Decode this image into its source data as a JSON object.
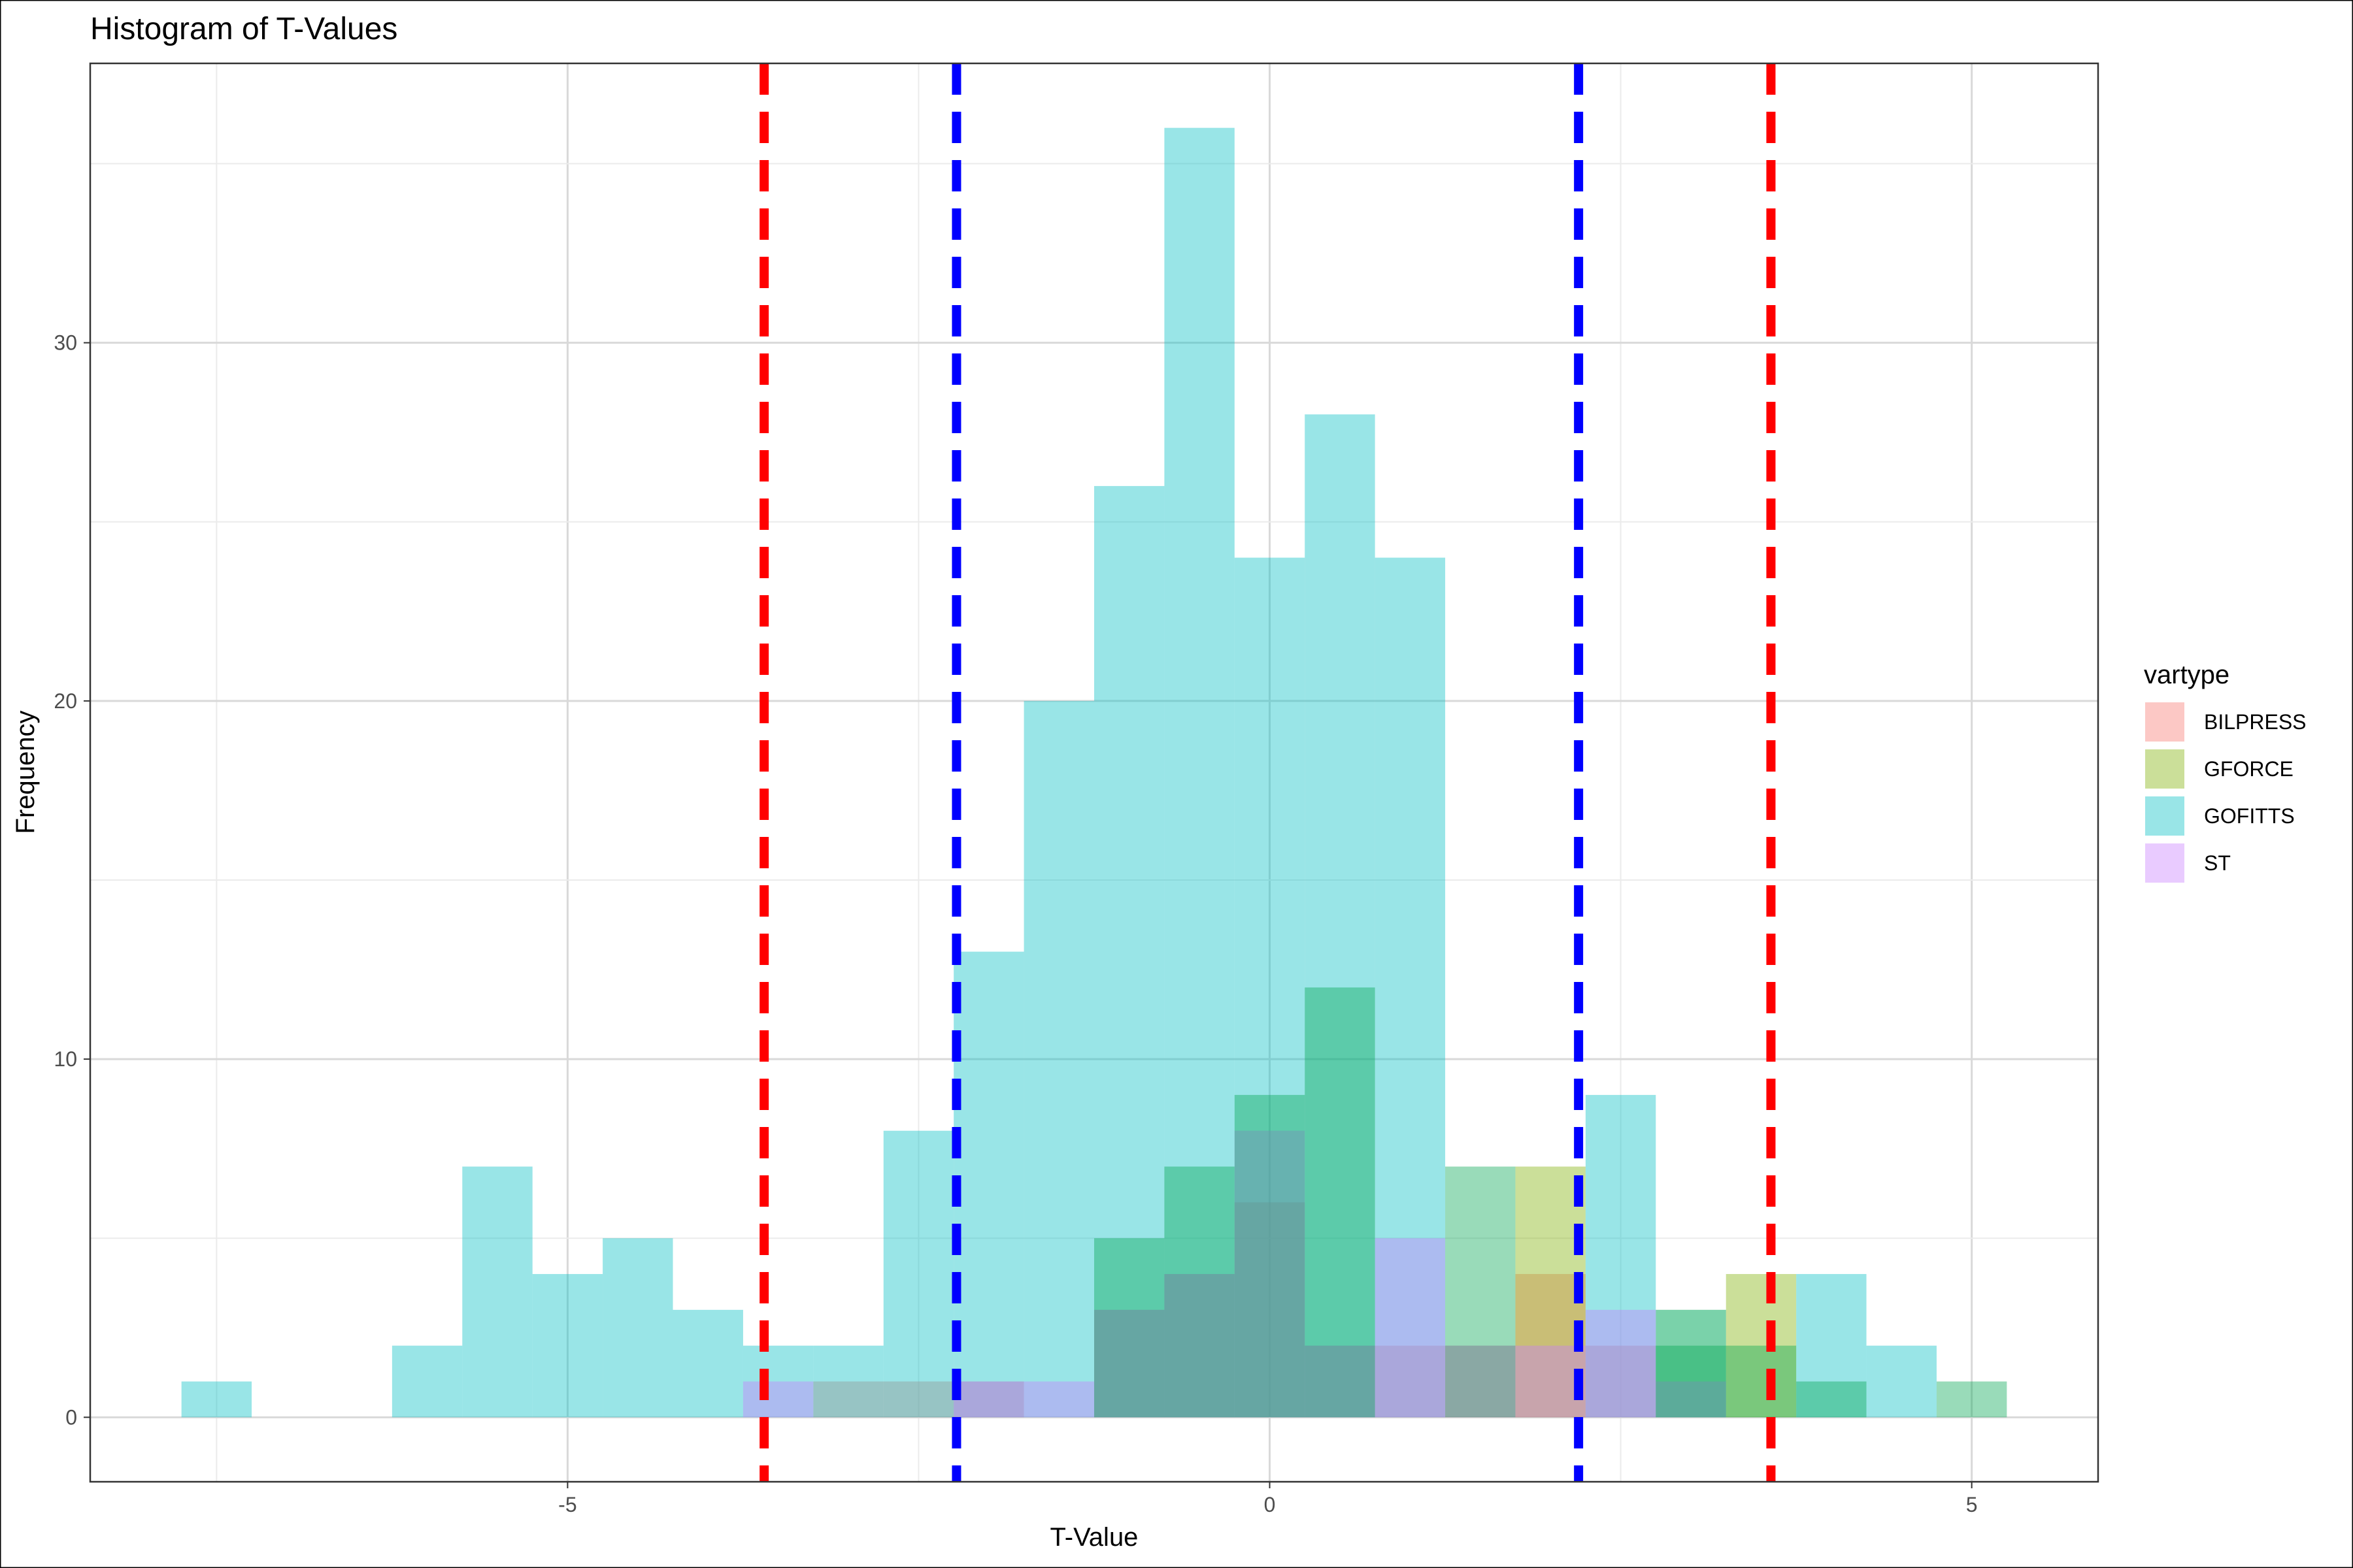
{
  "chart_data": {
    "type": "histogram",
    "title": "Histogram of T-Values",
    "xlabel": "T-Value",
    "ylabel": "Frequency",
    "xlim": [
      -8.4,
      5.9
    ],
    "ylim": [
      -1.8,
      37.8
    ],
    "x_ticks": [
      -5,
      0,
      5
    ],
    "x_tick_labels": [
      "-5",
      "0",
      "5"
    ],
    "y_ticks": [
      0,
      10,
      20,
      30
    ],
    "y_tick_labels": [
      "0",
      "10",
      "20",
      "30"
    ],
    "grid": true,
    "bin_width": 0.5,
    "legend": {
      "title": "vartype",
      "position": "right",
      "entries": [
        "BILPRESS",
        "GFORCE",
        "GOFITTS",
        "ST"
      ]
    },
    "series": [
      {
        "name": "BILPRESS",
        "color": "#F8766D",
        "bins": [
          {
            "x0": -3.25,
            "count": 1
          },
          {
            "x0": -2.75,
            "count": 1
          },
          {
            "x0": -2.25,
            "count": 1
          },
          {
            "x0": -1.25,
            "count": 3
          },
          {
            "x0": -0.75,
            "count": 4
          },
          {
            "x0": -0.25,
            "count": 6
          },
          {
            "x0": 0.25,
            "count": 2
          },
          {
            "x0": 0.75,
            "count": 2
          },
          {
            "x0": 1.25,
            "count": 2
          },
          {
            "x0": 1.75,
            "count": 4
          },
          {
            "x0": 2.25,
            "count": 2
          }
        ]
      },
      {
        "name": "GFORCE",
        "color": "#7CAE00",
        "bins": [
          {
            "x0": 1.75,
            "count": 7
          },
          {
            "x0": 2.75,
            "count": 3
          },
          {
            "x0": 3.25,
            "count": 4
          }
        ]
      },
      {
        "name": "GOFITTS",
        "color": "#00BFC4",
        "bins": [
          {
            "x0": -7.75,
            "count": 1
          },
          {
            "x0": -6.25,
            "count": 2
          },
          {
            "x0": -5.75,
            "count": 7
          },
          {
            "x0": -5.25,
            "count": 4
          },
          {
            "x0": -4.75,
            "count": 5
          },
          {
            "x0": -4.25,
            "count": 3
          },
          {
            "x0": -3.75,
            "count": 2
          },
          {
            "x0": -3.25,
            "count": 2
          },
          {
            "x0": -2.75,
            "count": 8
          },
          {
            "x0": -2.25,
            "count": 13
          },
          {
            "x0": -1.75,
            "count": 20
          },
          {
            "x0": -1.25,
            "count": 26
          },
          {
            "x0": -0.75,
            "count": 36
          },
          {
            "x0": -0.25,
            "count": 24
          },
          {
            "x0": 0.25,
            "count": 28
          },
          {
            "x0": 0.75,
            "count": 24
          },
          {
            "x0": 2.25,
            "count": 9
          },
          {
            "x0": 2.75,
            "count": 3
          },
          {
            "x0": 3.75,
            "count": 4
          },
          {
            "x0": 4.25,
            "count": 2
          }
        ]
      },
      {
        "name": "ST",
        "color": "#C77CFF",
        "bins": [
          {
            "x0": -3.75,
            "count": 1
          },
          {
            "x0": -2.25,
            "count": 1
          },
          {
            "x0": -1.75,
            "count": 1
          },
          {
            "x0": -1.25,
            "count": 3
          },
          {
            "x0": -0.75,
            "count": 4
          },
          {
            "x0": -0.25,
            "count": 8
          },
          {
            "x0": 0.25,
            "count": 2
          },
          {
            "x0": 0.75,
            "count": 5
          },
          {
            "x0": 1.25,
            "count": 2
          },
          {
            "x0": 1.75,
            "count": 2
          },
          {
            "x0": 2.25,
            "count": 3
          },
          {
            "x0": 2.75,
            "count": 1
          }
        ]
      },
      {
        "name": "",
        "color": "#00A651",
        "bins": [
          {
            "x0": -1.25,
            "count": 5
          },
          {
            "x0": -0.75,
            "count": 7
          },
          {
            "x0": -0.25,
            "count": 9
          },
          {
            "x0": 0.25,
            "count": 12
          },
          {
            "x0": 1.25,
            "count": 7
          },
          {
            "x0": 2.75,
            "count": 2
          },
          {
            "x0": 3.25,
            "count": 2
          },
          {
            "x0": 3.75,
            "count": 1
          },
          {
            "x0": 4.75,
            "count": 1
          }
        ]
      }
    ],
    "reference_lines": [
      {
        "x": -3.6,
        "color": "#FF0000",
        "style": "dashed"
      },
      {
        "x": -2.23,
        "color": "#0000FF",
        "style": "dashed"
      },
      {
        "x": 2.2,
        "color": "#0000FF",
        "style": "dashed"
      },
      {
        "x": 3.57,
        "color": "#FF0000",
        "style": "dashed"
      }
    ],
    "colors": {
      "panel_border": "#333333",
      "grid_major": "#D9D9D9",
      "grid_minor": "#EBEBEB",
      "axis_text": "#4D4D4D",
      "title_text": "#000000"
    }
  }
}
